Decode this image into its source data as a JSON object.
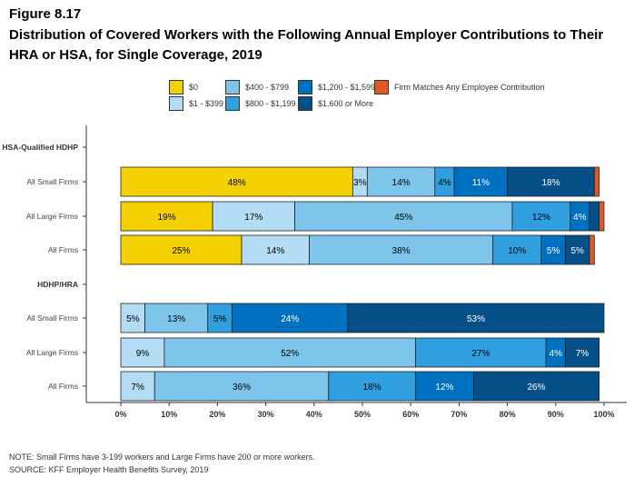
{
  "title": "Figure 8.17",
  "subtitle": "Distribution of Covered Workers with the Following Annual Employer Contributions to Their HRA or HSA, for Single Coverage, 2019",
  "note": "NOTE: Small Firms have 3-199 workers and Large Firms have 200 or more workers.",
  "source": "SOURCE: KFF Employer Health Benefits Survey, 2019",
  "chart_data": {
    "type": "bar",
    "orientation": "horizontal",
    "stacked": true,
    "xlim": [
      0,
      100
    ],
    "xticks": [
      "0%",
      "10%",
      "20%",
      "30%",
      "40%",
      "50%",
      "60%",
      "70%",
      "80%",
      "90%",
      "100%"
    ],
    "series": [
      {
        "name": "$0",
        "color": "#f5d000",
        "text": "#000"
      },
      {
        "name": "$1 - $399",
        "color": "#b2dcf3",
        "text": "#000"
      },
      {
        "name": "$400 - $799",
        "color": "#7ec5ec",
        "text": "#000"
      },
      {
        "name": "$800 - $1,199",
        "color": "#2f9fdf",
        "text": "#000"
      },
      {
        "name": "$1,200 - $1,599",
        "color": "#0070c0",
        "text": "#fff"
      },
      {
        "name": "$1,600 or More",
        "color": "#044f88",
        "text": "#fff"
      },
      {
        "name": "Firm Matches Any Employee Contribution",
        "color": "#e05a25",
        "text": "#fff"
      }
    ],
    "groups": [
      {
        "label": "HSA-Qualified HDHP",
        "rows": [
          {
            "label": "All Small Firms",
            "values": [
              48,
              3,
              14,
              4,
              11,
              18,
              1
            ],
            "labels": [
              "48%",
              "3%",
              "14%",
              "4%",
              "11%",
              "18%",
              ""
            ]
          },
          {
            "label": "All Large Firms",
            "values": [
              19,
              17,
              45,
              12,
              4,
              2,
              1
            ],
            "labels": [
              "19%",
              "17%",
              "45%",
              "12%",
              "4%",
              "",
              ""
            ]
          },
          {
            "label": "All Firms",
            "values": [
              25,
              14,
              38,
              10,
              5,
              5,
              1
            ],
            "labels": [
              "25%",
              "14%",
              "38%",
              "10%",
              "5%",
              "5%",
              ""
            ]
          }
        ]
      },
      {
        "label": "HDHP/HRA",
        "rows": [
          {
            "label": "All Small Firms",
            "values": [
              0,
              5,
              13,
              5,
              24,
              53,
              0
            ],
            "labels": [
              "",
              "5%",
              "13%",
              "5%",
              "24%",
              "53%",
              ""
            ]
          },
          {
            "label": "All Large Firms",
            "values": [
              0,
              9,
              52,
              27,
              4,
              7,
              0
            ],
            "labels": [
              "",
              "9%",
              "52%",
              "27%",
              "4%",
              "7%",
              ""
            ]
          },
          {
            "label": "All Firms",
            "values": [
              0,
              7,
              36,
              18,
              12,
              26,
              0
            ],
            "labels": [
              "",
              "7%",
              "36%",
              "18%",
              "12%",
              "26%",
              ""
            ]
          }
        ]
      }
    ]
  }
}
